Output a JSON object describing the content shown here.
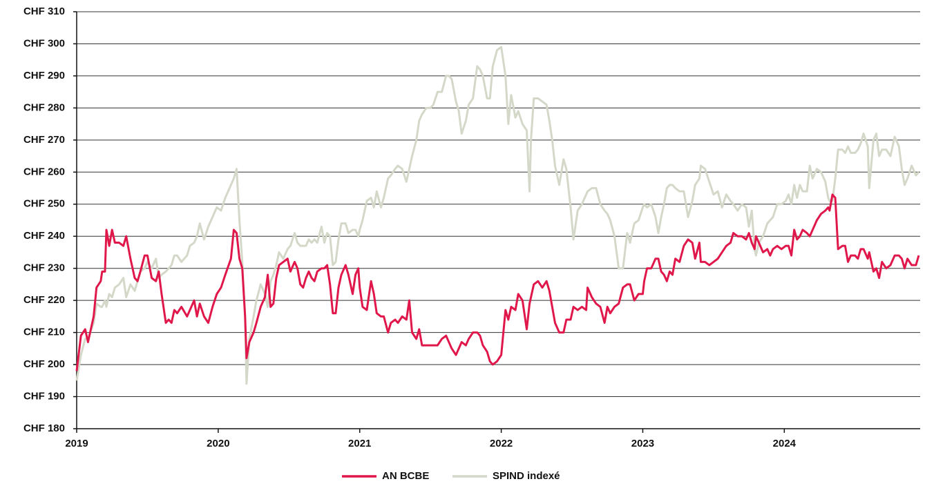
{
  "chart_data": {
    "type": "line",
    "x": [
      2019.0,
      2019.03,
      2019.06,
      2019.08,
      2019.12,
      2019.14,
      2019.17,
      2019.18,
      2019.2,
      2019.21,
      2019.23,
      2019.25,
      2019.27,
      2019.3,
      2019.33,
      2019.35,
      2019.38,
      2019.41,
      2019.43,
      2019.45,
      2019.48,
      2019.5,
      2019.53,
      2019.56,
      2019.58,
      2019.6,
      2019.63,
      2019.65,
      2019.67,
      2019.69,
      2019.71,
      2019.74,
      2019.78,
      2019.8,
      2019.83,
      2019.85,
      2019.87,
      2019.9,
      2019.93,
      2019.96,
      2019.99,
      2020.02,
      2020.05,
      2020.09,
      2020.11,
      2020.13,
      2020.15,
      2020.17,
      2020.19,
      2020.2,
      2020.22,
      2020.25,
      2020.27,
      2020.3,
      2020.33,
      2020.35,
      2020.37,
      2020.39,
      2020.41,
      2020.43,
      2020.46,
      2020.49,
      2020.51,
      2020.54,
      2020.56,
      2020.58,
      2020.6,
      2020.62,
      2020.64,
      2020.66,
      2020.68,
      2020.7,
      2020.73,
      2020.75,
      2020.77,
      2020.79,
      2020.81,
      2020.83,
      2020.85,
      2020.87,
      2020.9,
      2020.92,
      2020.95,
      2020.97,
      2020.99,
      2021.0,
      2021.02,
      2021.05,
      2021.08,
      2021.1,
      2021.12,
      2021.15,
      2021.17,
      2021.2,
      2021.22,
      2021.25,
      2021.27,
      2021.3,
      2021.33,
      2021.35,
      2021.37,
      2021.4,
      2021.42,
      2021.44,
      2021.47,
      2021.5,
      2021.52,
      2021.55,
      2021.58,
      2021.61,
      2021.63,
      2021.65,
      2021.68,
      2021.7,
      2021.72,
      2021.75,
      2021.77,
      2021.8,
      2021.83,
      2021.85,
      2021.87,
      2021.9,
      2021.92,
      2021.94,
      2021.97,
      2022.0,
      2022.03,
      2022.05,
      2022.07,
      2022.1,
      2022.12,
      2022.15,
      2022.18,
      2022.2,
      2022.21,
      2022.23,
      2022.26,
      2022.29,
      2022.32,
      2022.34,
      2022.36,
      2022.38,
      2022.41,
      2022.44,
      2022.46,
      2022.49,
      2022.51,
      2022.54,
      2022.57,
      2022.6,
      2022.61,
      2022.64,
      2022.67,
      2022.7,
      2022.73,
      2022.75,
      2022.77,
      2022.8,
      2022.83,
      2022.86,
      2022.89,
      2022.91,
      2022.94,
      2022.97,
      2023.0,
      2023.01,
      2023.03,
      2023.06,
      2023.09,
      2023.11,
      2023.13,
      2023.15,
      2023.17,
      2023.19,
      2023.21,
      2023.23,
      2023.26,
      2023.29,
      2023.32,
      2023.35,
      2023.37,
      2023.4,
      2023.41,
      2023.44,
      2023.47,
      2023.5,
      2023.53,
      2023.56,
      2023.59,
      2023.62,
      2023.64,
      2023.67,
      2023.7,
      2023.73,
      2023.75,
      2023.77,
      2023.79,
      2023.8,
      2023.82,
      2023.85,
      2023.88,
      2023.9,
      2023.92,
      2023.95,
      2023.98,
      2024.01,
      2024.03,
      2024.05,
      2024.07,
      2024.09,
      2024.11,
      2024.13,
      2024.16,
      2024.18,
      2024.2,
      2024.23,
      2024.26,
      2024.29,
      2024.31,
      2024.32,
      2024.34,
      2024.36,
      2024.38,
      2024.41,
      2024.43,
      2024.45,
      2024.47,
      2024.5,
      2024.52,
      2024.54,
      2024.56,
      2024.59,
      2024.6,
      2024.63,
      2024.65,
      2024.67,
      2024.69,
      2024.72,
      2024.75,
      2024.78,
      2024.81,
      2024.83,
      2024.85,
      2024.87,
      2024.9,
      2024.93,
      2024.95
    ],
    "series": [
      {
        "name": "AN BCBE",
        "color": "#e0174a",
        "values": [
          198,
          209,
          211,
          207,
          215,
          224,
          226,
          229,
          229,
          242,
          237,
          242,
          238,
          238,
          237,
          240,
          233,
          227,
          226,
          229,
          234,
          234,
          227,
          226,
          229,
          222,
          213,
          214,
          213,
          217,
          216,
          218,
          215,
          217,
          220,
          215,
          219,
          215,
          213,
          218,
          222,
          224,
          228,
          233,
          242,
          241,
          233,
          230,
          215,
          202,
          207,
          210,
          213,
          218,
          221,
          228,
          218,
          219,
          227,
          231,
          232,
          233,
          229,
          232,
          230,
          225,
          224,
          227,
          229,
          227,
          226,
          229,
          230,
          230,
          231,
          225,
          216,
          216,
          224,
          228,
          231,
          228,
          222,
          228,
          230,
          224,
          218,
          217,
          226,
          222,
          216,
          215,
          215,
          210,
          213,
          214,
          213,
          215,
          214,
          220,
          210,
          208,
          211,
          206,
          206,
          206,
          206,
          206,
          208,
          209,
          207,
          205,
          203,
          205,
          207,
          206,
          208,
          210,
          210,
          209,
          206,
          204,
          201,
          200,
          201,
          203,
          217,
          214,
          218,
          217,
          222,
          220,
          211,
          219,
          221,
          225,
          226,
          224,
          226,
          223,
          218,
          213,
          210,
          210,
          214,
          214,
          218,
          217,
          218,
          217,
          224,
          221,
          219,
          218,
          213,
          218,
          216,
          218,
          219,
          224,
          225,
          225,
          220,
          222,
          222,
          226,
          230,
          230,
          233,
          233,
          229,
          228,
          226,
          229,
          228,
          233,
          232,
          237,
          239,
          238,
          233,
          238,
          232,
          232,
          231,
          232,
          233,
          235,
          237,
          238,
          241,
          240,
          240,
          239,
          241,
          238,
          236,
          240,
          238,
          235,
          236,
          234,
          236,
          237,
          236,
          237,
          237,
          234,
          242,
          239,
          240,
          242,
          241,
          240,
          242,
          245,
          247,
          248,
          249,
          248,
          253,
          252,
          236,
          237,
          237,
          232,
          234,
          234,
          233,
          236,
          236,
          233,
          235,
          229,
          230,
          227,
          232,
          230,
          231,
          234,
          234,
          233,
          230,
          233,
          231,
          231,
          234
        ]
      },
      {
        "name": "SPIND indexé",
        "color": "#d3d8c8",
        "values": [
          195,
          203,
          208,
          208,
          213,
          219,
          218,
          218,
          220,
          218,
          222,
          221,
          224,
          225,
          227,
          221,
          225,
          223,
          226,
          229,
          230,
          232,
          230,
          233,
          227,
          228,
          229,
          230,
          231,
          234,
          234,
          232,
          234,
          237,
          238,
          240,
          244,
          239,
          243,
          246,
          249,
          248,
          252,
          256,
          258,
          261,
          245,
          232,
          215,
          194,
          208,
          215,
          220,
          225,
          222,
          218,
          226,
          228,
          231,
          235,
          233,
          236,
          237,
          241,
          238,
          237,
          237,
          237,
          239,
          238,
          239,
          238,
          243,
          238,
          241,
          240,
          231,
          232,
          239,
          244,
          244,
          241,
          242,
          242,
          240,
          242,
          245,
          251,
          252,
          249,
          254,
          249,
          252,
          258,
          259,
          261,
          262,
          261,
          257,
          261,
          265,
          270,
          276,
          278,
          280,
          280,
          281,
          285,
          285,
          290,
          290,
          289,
          282,
          279,
          272,
          276,
          281,
          283,
          293,
          292,
          290,
          283,
          283,
          293,
          298,
          299,
          290,
          275,
          284,
          277,
          279,
          275,
          273,
          254,
          270,
          283,
          283,
          282,
          281,
          276,
          270,
          262,
          256,
          264,
          261,
          249,
          239,
          248,
          250,
          253,
          254,
          255,
          255,
          250,
          248,
          247,
          245,
          240,
          230,
          230,
          241,
          238,
          244,
          245,
          249,
          250,
          249,
          250,
          246,
          241,
          246,
          250,
          255,
          256,
          256,
          255,
          254,
          254,
          246,
          251,
          256,
          258,
          262,
          261,
          257,
          253,
          254,
          249,
          253,
          251,
          250,
          248,
          250,
          249,
          243,
          248,
          236,
          234,
          238,
          240,
          244,
          245,
          246,
          250,
          250,
          251,
          253,
          250,
          256,
          252,
          256,
          254,
          254,
          262,
          258,
          261,
          260,
          257,
          252,
          251,
          251,
          258,
          267,
          267,
          266,
          268,
          266,
          266,
          267,
          269,
          272,
          268,
          255,
          270,
          272,
          265,
          267,
          267,
          265,
          271,
          268,
          261,
          256,
          258,
          262,
          259,
          260
        ]
      }
    ],
    "xlim": [
      2019,
      2024.96
    ],
    "xticks": [
      2019,
      2020,
      2021,
      2022,
      2023,
      2024
    ],
    "ylim": [
      180,
      310
    ],
    "yticks": [
      {
        "value": 180,
        "label": "CHF 180"
      },
      {
        "value": 190,
        "label": "CHF 190"
      },
      {
        "value": 200,
        "label": "CHF 200"
      },
      {
        "value": 210,
        "label": "CHF 210"
      },
      {
        "value": 220,
        "label": "CHF 220"
      },
      {
        "value": 230,
        "label": "CHF 230"
      },
      {
        "value": 240,
        "label": "CHF 240"
      },
      {
        "value": 250,
        "label": "CHF 250"
      },
      {
        "value": 260,
        "label": "CHF 260"
      },
      {
        "value": 270,
        "label": "CHF 270"
      },
      {
        "value": 280,
        "label": "CHF 280"
      },
      {
        "value": 290,
        "label": "CHF 290"
      },
      {
        "value": 300,
        "label": "CHF 300"
      },
      {
        "value": 310,
        "label": "CHF 310"
      }
    ],
    "grid": true,
    "legend": "bottom"
  }
}
